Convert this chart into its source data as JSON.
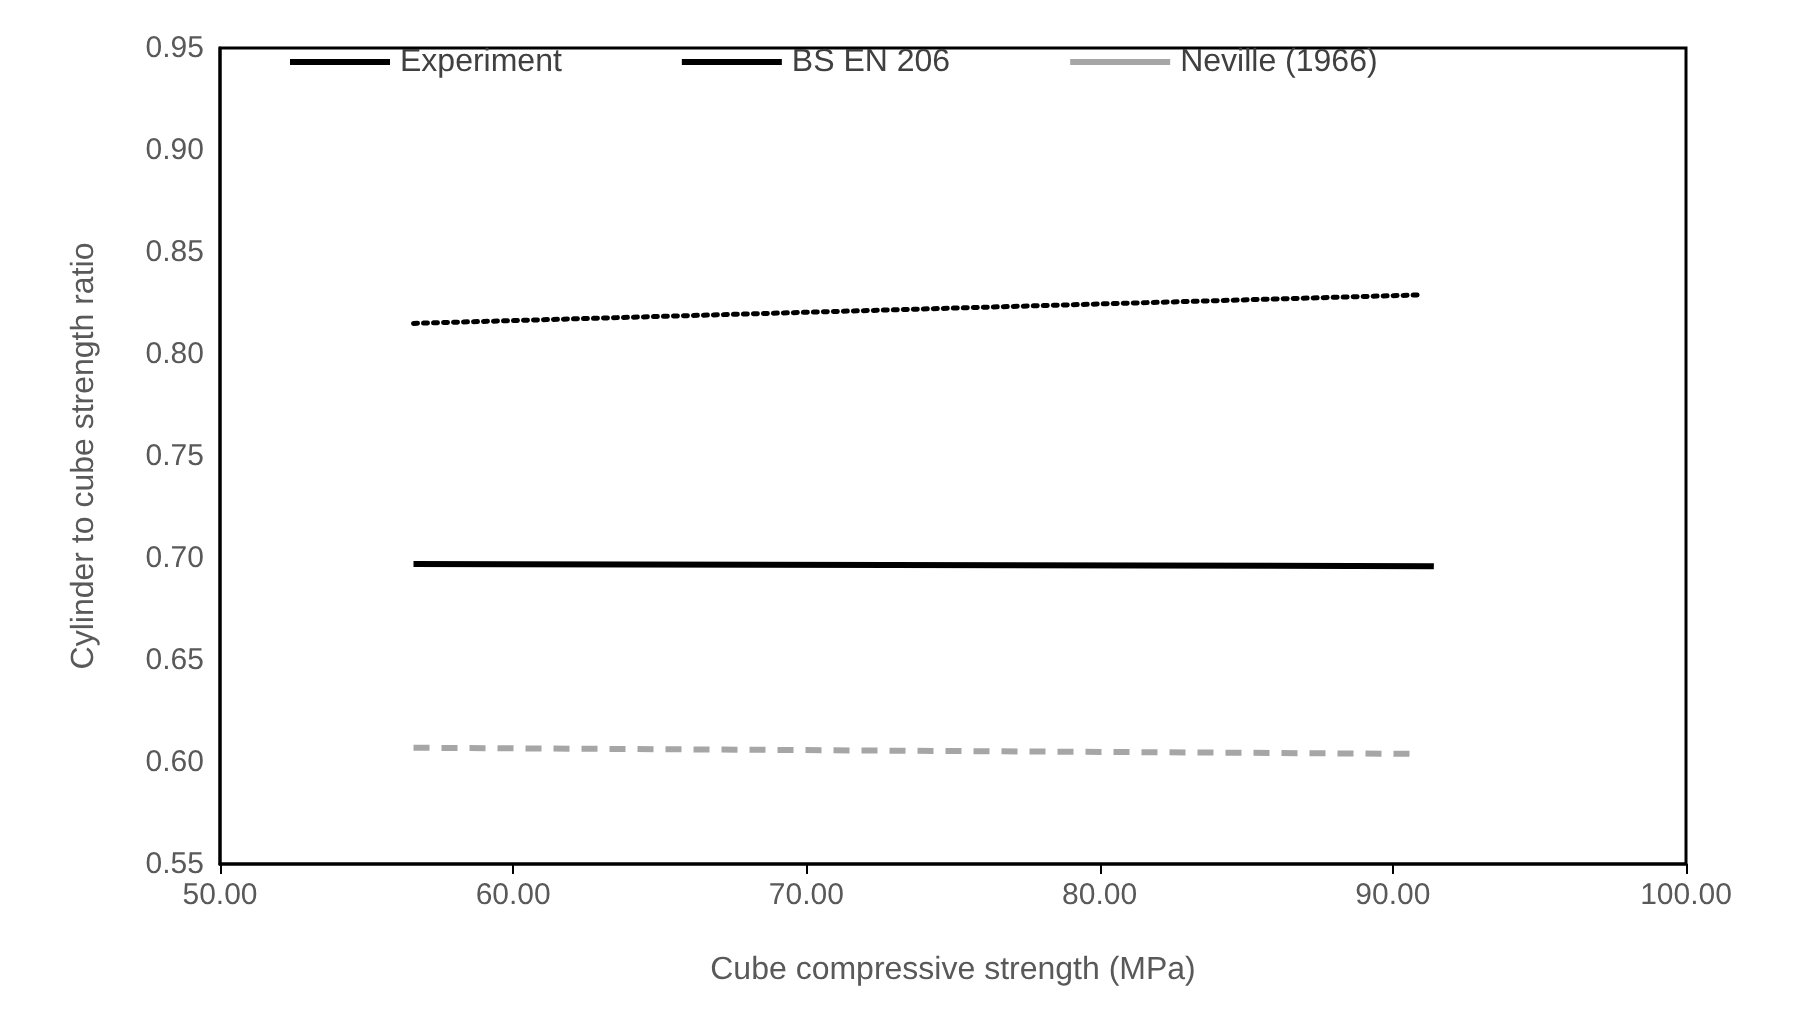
{
  "chart_data": {
    "type": "line",
    "xlabel": "Cube compressive strength (MPa)",
    "ylabel": "Cylinder to cube strength ratio",
    "xlim": [
      50,
      100
    ],
    "xticks": [
      {
        "value": 50,
        "label": "50.00"
      },
      {
        "value": 60,
        "label": "60.00"
      },
      {
        "value": 70,
        "label": "70.00"
      },
      {
        "value": 80,
        "label": "80.00"
      },
      {
        "value": 90,
        "label": "90.00"
      },
      {
        "value": 100,
        "label": "100.00"
      }
    ],
    "ylim": [
      0.55,
      0.95
    ],
    "yticks": [
      {
        "value": 0.55,
        "label": "0.55"
      },
      {
        "value": 0.6,
        "label": "0.60"
      },
      {
        "value": 0.65,
        "label": "0.65"
      },
      {
        "value": 0.7,
        "label": "0.70"
      },
      {
        "value": 0.75,
        "label": "0.75"
      },
      {
        "value": 0.8,
        "label": "0.80"
      },
      {
        "value": 0.85,
        "label": "0.85"
      },
      {
        "value": 0.9,
        "label": "0.90"
      },
      {
        "value": 0.95,
        "label": "0.95"
      }
    ],
    "grid": false,
    "legend": "top",
    "marker": "none",
    "series": [
      {
        "name": "Experiment",
        "color": "#000000",
        "line_style": "solid",
        "x": [
          56.6,
          91.4
        ],
        "values": [
          0.697,
          0.696
        ]
      },
      {
        "name": "BS EN 206",
        "color": "#000000",
        "line_style": "dotted",
        "x": [
          56.6,
          91.0
        ],
        "values": [
          0.815,
          0.829
        ]
      },
      {
        "name": "Neville (1966)",
        "color": "#a6a6a6",
        "line_style": "dashed",
        "x": [
          56.6,
          90.7
        ],
        "values": [
          0.607,
          0.604
        ]
      }
    ]
  }
}
